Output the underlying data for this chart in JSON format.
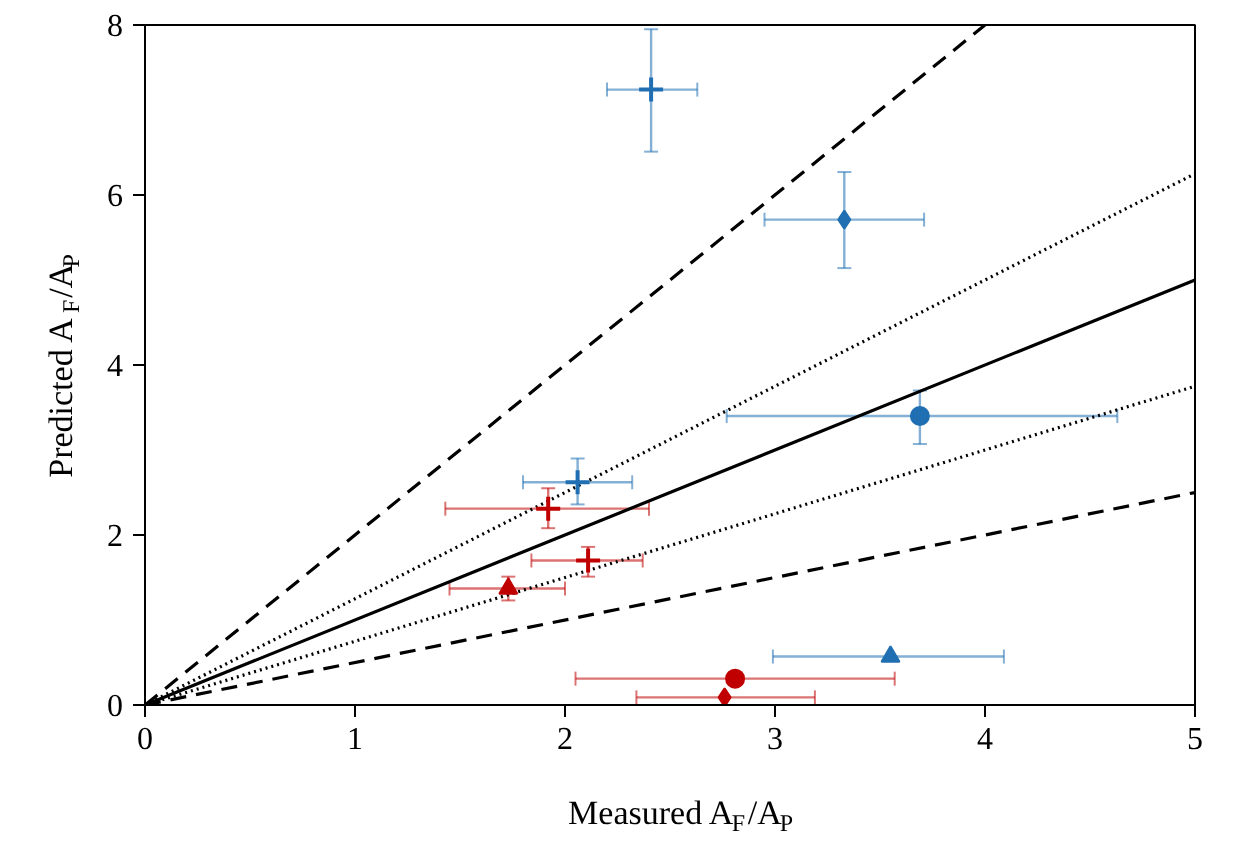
{
  "chart_data": {
    "type": "scatter",
    "xlabel": "Measured A$_{F}$/A$_{P}$",
    "ylabel": "Predicted A$_{F}$/A$_{P}$",
    "xlim": [
      0,
      5
    ],
    "ylim": [
      0,
      8
    ],
    "xticks": [
      0,
      1,
      2,
      3,
      4,
      5
    ],
    "yticks": [
      0,
      2,
      4,
      6,
      8
    ],
    "grid": false,
    "series": [
      {
        "type": "line",
        "x": [
          0,
          4
        ],
        "values": [
          0,
          8
        ],
        "color": "#000000",
        "line_style": "dashed",
        "marker": "none"
      },
      {
        "type": "line",
        "x": [
          0,
          5
        ],
        "values": [
          0,
          6.25
        ],
        "color": "#000000",
        "line_style": "dotted",
        "marker": "none"
      },
      {
        "type": "line",
        "x": [
          0,
          5
        ],
        "values": [
          0,
          5
        ],
        "color": "#000000",
        "line_style": "solid",
        "marker": "none"
      },
      {
        "type": "line",
        "x": [
          0,
          5
        ],
        "values": [
          0,
          3.75
        ],
        "color": "#000000",
        "line_style": "dotted",
        "marker": "none"
      },
      {
        "type": "line",
        "x": [
          0,
          5
        ],
        "values": [
          0,
          2.5
        ],
        "color": "#000000",
        "line_style": "dashed",
        "marker": "none"
      },
      {
        "x": [
          2.41
        ],
        "values": [
          7.24
        ],
        "color": "#1f6fb2",
        "marker": "cross",
        "errors": [
          [
            6.51,
            7.95
          ]
        ],
        "xerrors": [
          [
            2.2,
            2.63
          ]
        ]
      },
      {
        "x": [
          3.33
        ],
        "values": [
          5.71
        ],
        "color": "#1f6fb2",
        "marker": "diamond",
        "errors": [
          [
            5.14,
            6.27
          ]
        ],
        "xerrors": [
          [
            2.95,
            3.71
          ]
        ]
      },
      {
        "x": [
          3.69
        ],
        "values": [
          3.4
        ],
        "color": "#1f6fb2",
        "marker": "circle",
        "errors": [
          [
            3.07,
            3.7
          ]
        ],
        "xerrors": [
          [
            2.77,
            4.63
          ]
        ]
      },
      {
        "x": [
          2.06
        ],
        "values": [
          2.62
        ],
        "color": "#1f6fb2",
        "marker": "cross",
        "errors": [
          [
            2.36,
            2.9
          ]
        ],
        "xerrors": [
          [
            1.8,
            2.32
          ]
        ]
      },
      {
        "x": [
          3.55
        ],
        "values": [
          0.57
        ],
        "color": "#1f6fb2",
        "marker": "triangle",
        "xerrors": [
          [
            2.99,
            4.09
          ]
        ]
      },
      {
        "x": [
          1.92
        ],
        "values": [
          2.31
        ],
        "color": "#c00000",
        "marker": "cross",
        "errors": [
          [
            2.08,
            2.55
          ]
        ],
        "xerrors": [
          [
            1.43,
            2.4
          ]
        ]
      },
      {
        "x": [
          2.11
        ],
        "values": [
          1.7
        ],
        "color": "#c00000",
        "marker": "cross",
        "errors": [
          [
            1.51,
            1.86
          ]
        ],
        "xerrors": [
          [
            1.84,
            2.37
          ]
        ]
      },
      {
        "x": [
          1.73
        ],
        "values": [
          1.37
        ],
        "color": "#c00000",
        "marker": "triangle",
        "errors": [
          [
            1.23,
            1.51
          ]
        ],
        "xerrors": [
          [
            1.45,
            2.0
          ]
        ]
      },
      {
        "x": [
          2.81
        ],
        "values": [
          0.31
        ],
        "color": "#c00000",
        "marker": "circle",
        "xerrors": [
          [
            2.05,
            3.57
          ]
        ]
      },
      {
        "x": [
          2.76
        ],
        "values": [
          0.09
        ],
        "color": "#c00000",
        "marker": "diamond",
        "xerrors": [
          [
            2.34,
            3.19
          ]
        ]
      }
    ]
  }
}
